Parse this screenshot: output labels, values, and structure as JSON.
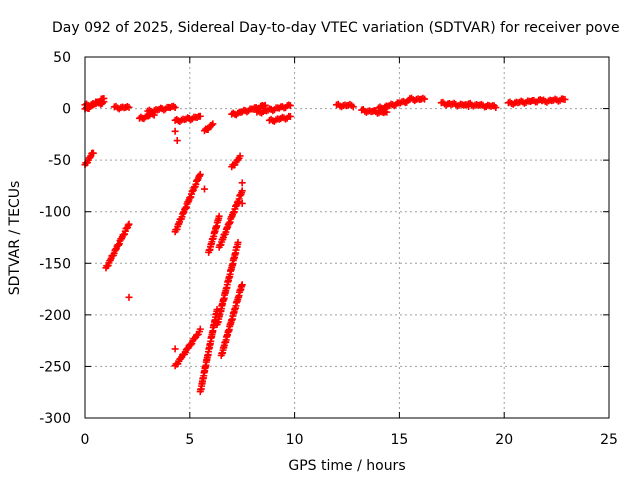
{
  "chart_data": {
    "type": "scatter",
    "title": "Day 092 of 2025, Sidereal Day-to-day VTEC variation (SDTVAR) for receiver pove",
    "xlabel": "GPS time / hours",
    "ylabel": "SDTVAR / TECUs",
    "xlim": [
      0,
      25
    ],
    "ylim": [
      -300,
      50
    ],
    "xticks": [
      0,
      5,
      10,
      15,
      20,
      25
    ],
    "yticks": [
      50,
      0,
      -50,
      -100,
      -150,
      -200,
      -250,
      -300
    ],
    "grid": true,
    "legend": "none",
    "marker": "+",
    "color": "#ff0000",
    "segments": [
      {
        "x": [
          0.0,
          0.9
        ],
        "y": [
          3,
          6
        ]
      },
      {
        "x": [
          0.0,
          0.9
        ],
        "y": [
          -1,
          10
        ]
      },
      {
        "x": [
          1.4,
          2.1
        ],
        "y": [
          1,
          1
        ]
      },
      {
        "x": [
          2.6,
          3.3
        ],
        "y": [
          -10,
          -5
        ]
      },
      {
        "x": [
          3.0,
          4.3
        ],
        "y": [
          -3,
          2
        ]
      },
      {
        "x": [
          4.3,
          5.5
        ],
        "y": [
          -12,
          -8
        ]
      },
      {
        "x": [
          5.7,
          6.1
        ],
        "y": [
          -22,
          -15
        ]
      },
      {
        "x": [
          7.0,
          8.6
        ],
        "y": [
          -6,
          3
        ]
      },
      {
        "x": [
          8.2,
          9.8
        ],
        "y": [
          -4,
          3
        ]
      },
      {
        "x": [
          8.8,
          9.8
        ],
        "y": [
          -12,
          -8
        ]
      },
      {
        "x": [
          12.0,
          12.8
        ],
        "y": [
          3,
          3
        ]
      },
      {
        "x": [
          13.2,
          14.4
        ],
        "y": [
          -2,
          -4
        ]
      },
      {
        "x": [
          14.0,
          15.5
        ],
        "y": [
          0,
          8
        ]
      },
      {
        "x": [
          15.5,
          16.2
        ],
        "y": [
          9,
          9
        ]
      },
      {
        "x": [
          17.0,
          18.3
        ],
        "y": [
          5,
          3
        ]
      },
      {
        "x": [
          18.3,
          19.6
        ],
        "y": [
          4,
          2
        ]
      },
      {
        "x": [
          20.2,
          21.8
        ],
        "y": [
          5,
          8
        ]
      },
      {
        "x": [
          21.8,
          22.9
        ],
        "y": [
          7,
          9
        ]
      },
      {
        "x": [
          0.0,
          0.4
        ],
        "y": [
          -55,
          -42
        ]
      },
      {
        "x": [
          1.0,
          2.1
        ],
        "y": [
          -155,
          -112
        ]
      },
      {
        "x": [
          4.3,
          5.5
        ],
        "y": [
          -120,
          -63
        ]
      },
      {
        "x": [
          4.3,
          5.5
        ],
        "y": [
          -250,
          -215
        ]
      },
      {
        "x": [
          5.5,
          6.3
        ],
        "y": [
          -275,
          -195
        ]
      },
      {
        "x": [
          5.9,
          6.4
        ],
        "y": [
          -140,
          -105
        ]
      },
      {
        "x": [
          6.3,
          7.3
        ],
        "y": [
          -210,
          -130
        ]
      },
      {
        "x": [
          6.5,
          7.5
        ],
        "y": [
          -240,
          -170
        ]
      },
      {
        "x": [
          6.4,
          7.5
        ],
        "y": [
          -135,
          -80
        ]
      },
      {
        "x": [
          7.0,
          7.4
        ],
        "y": [
          -57,
          -47
        ]
      }
    ],
    "points": [
      {
        "x": 2.1,
        "y": -183
      },
      {
        "x": 4.3,
        "y": -233
      },
      {
        "x": 4.4,
        "y": -31
      },
      {
        "x": 4.3,
        "y": -22
      },
      {
        "x": 5.7,
        "y": -78
      },
      {
        "x": 7.5,
        "y": -72
      },
      {
        "x": 7.5,
        "y": -92
      }
    ]
  }
}
